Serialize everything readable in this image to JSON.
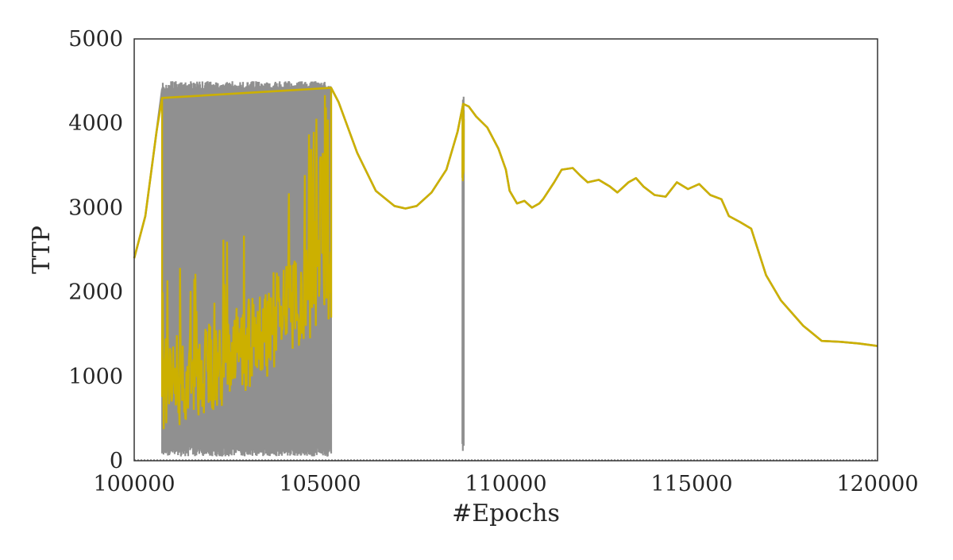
{
  "chart_data": {
    "type": "line",
    "title": "",
    "xlabel": "#Epochs",
    "ylabel": "TTP",
    "xlim": [
      100000,
      120000
    ],
    "ylim": [
      0,
      5000
    ],
    "x_ticks": [
      100000,
      105000,
      110000,
      115000,
      120000
    ],
    "y_ticks": [
      0,
      1000,
      2000,
      3000,
      4000,
      5000
    ],
    "x_tick_labels": [
      "100000",
      "105000",
      "110000",
      "115000",
      "120000"
    ],
    "y_tick_labels": [
      "0",
      "1000",
      "2000",
      "3000",
      "4000",
      "5000"
    ],
    "grid": false,
    "legend": "none",
    "colors": {
      "series_raw": "#909090",
      "series_smooth": "#ccb000",
      "axes": "#333333"
    },
    "series": [
      {
        "style": "raw",
        "color": "#909090",
        "oscillation_band": {
          "x_start": 100750,
          "x_end": 105300,
          "y_low": 50,
          "y_high": 4500
        },
        "spike": {
          "x": 108850,
          "y_low": 80,
          "y_high": 4320
        },
        "points": [
          [
            100000,
            2400
          ],
          [
            100300,
            2900
          ],
          [
            100600,
            3900
          ],
          [
            100750,
            4400
          ],
          [
            105300,
            4420
          ],
          [
            105500,
            4250
          ],
          [
            106000,
            3650
          ],
          [
            106500,
            3200
          ],
          [
            107000,
            3020
          ],
          [
            107300,
            2990
          ],
          [
            107600,
            3020
          ],
          [
            108000,
            3180
          ],
          [
            108400,
            3450
          ],
          [
            108700,
            3900
          ],
          [
            108850,
            4230
          ],
          [
            109000,
            4200
          ],
          [
            109200,
            4080
          ],
          [
            109500,
            3950
          ],
          [
            109800,
            3700
          ],
          [
            110000,
            3450
          ],
          [
            110100,
            3200
          ],
          [
            110300,
            3050
          ],
          [
            110500,
            3080
          ],
          [
            110700,
            3000
          ],
          [
            110900,
            3050
          ],
          [
            111000,
            3100
          ],
          [
            111300,
            3300
          ],
          [
            111500,
            3450
          ],
          [
            111800,
            3470
          ],
          [
            112000,
            3380
          ],
          [
            112200,
            3300
          ],
          [
            112500,
            3330
          ],
          [
            112800,
            3250
          ],
          [
            113000,
            3180
          ],
          [
            113300,
            3300
          ],
          [
            113500,
            3350
          ],
          [
            113700,
            3250
          ],
          [
            114000,
            3150
          ],
          [
            114300,
            3130
          ],
          [
            114600,
            3300
          ],
          [
            114900,
            3220
          ],
          [
            115200,
            3280
          ],
          [
            115500,
            3150
          ],
          [
            115800,
            3100
          ],
          [
            116000,
            2900
          ],
          [
            116300,
            2830
          ],
          [
            116600,
            2750
          ],
          [
            117000,
            2200
          ],
          [
            117400,
            1900
          ],
          [
            118000,
            1600
          ],
          [
            118500,
            1420
          ],
          [
            119000,
            1410
          ],
          [
            119500,
            1390
          ],
          [
            120000,
            1360
          ]
        ]
      },
      {
        "style": "smoothed",
        "color": "#ccb000",
        "noisy_band": {
          "x_start": 100750,
          "x_end": 105300,
          "y_low": 300,
          "y_high": 4350,
          "trend": [
            [
              100750,
              900
            ],
            [
              102000,
              1100
            ],
            [
              103000,
              1350
            ],
            [
              104000,
              1750
            ],
            [
              105000,
              2100
            ]
          ]
        },
        "spike": {
          "x": 108850,
          "y_low": 3300,
          "y_high": 4230
        },
        "points": [
          [
            100000,
            2400
          ],
          [
            100300,
            2900
          ],
          [
            100600,
            3900
          ],
          [
            100750,
            4300
          ],
          [
            105300,
            4420
          ],
          [
            105500,
            4250
          ],
          [
            106000,
            3650
          ],
          [
            106500,
            3200
          ],
          [
            107000,
            3020
          ],
          [
            107300,
            2990
          ],
          [
            107600,
            3020
          ],
          [
            108000,
            3180
          ],
          [
            108400,
            3450
          ],
          [
            108700,
            3900
          ],
          [
            108850,
            4230
          ],
          [
            109000,
            4200
          ],
          [
            109200,
            4080
          ],
          [
            109500,
            3950
          ],
          [
            109800,
            3700
          ],
          [
            110000,
            3450
          ],
          [
            110100,
            3200
          ],
          [
            110300,
            3050
          ],
          [
            110500,
            3080
          ],
          [
            110700,
            3000
          ],
          [
            110900,
            3050
          ],
          [
            111000,
            3100
          ],
          [
            111300,
            3300
          ],
          [
            111500,
            3450
          ],
          [
            111800,
            3470
          ],
          [
            112000,
            3380
          ],
          [
            112200,
            3300
          ],
          [
            112500,
            3330
          ],
          [
            112800,
            3250
          ],
          [
            113000,
            3180
          ],
          [
            113300,
            3300
          ],
          [
            113500,
            3350
          ],
          [
            113700,
            3250
          ],
          [
            114000,
            3150
          ],
          [
            114300,
            3130
          ],
          [
            114600,
            3300
          ],
          [
            114900,
            3220
          ],
          [
            115200,
            3280
          ],
          [
            115500,
            3150
          ],
          [
            115800,
            3100
          ],
          [
            116000,
            2900
          ],
          [
            116300,
            2830
          ],
          [
            116600,
            2750
          ],
          [
            117000,
            2200
          ],
          [
            117400,
            1900
          ],
          [
            118000,
            1600
          ],
          [
            118500,
            1420
          ],
          [
            119000,
            1410
          ],
          [
            119500,
            1390
          ],
          [
            120000,
            1360
          ]
        ]
      }
    ]
  }
}
